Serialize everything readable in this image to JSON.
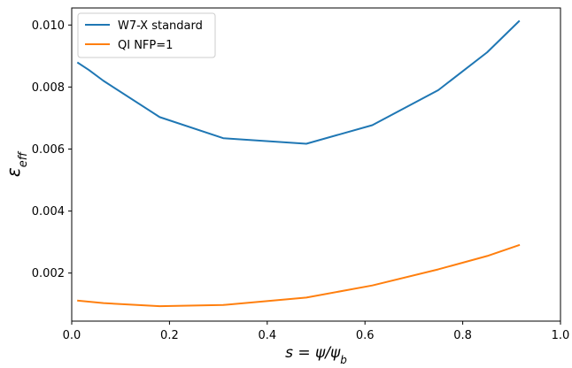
{
  "chart_data": {
    "type": "line",
    "title": "",
    "xlabel": "s = ψ/ψ_b",
    "ylabel": "ε_eff",
    "xlim": [
      0.0,
      1.0
    ],
    "ylim": [
      0.00045,
      0.01055
    ],
    "xticks": [
      0.0,
      0.2,
      0.4,
      0.6,
      0.8,
      1.0
    ],
    "xtick_labels": [
      "0.0",
      "0.2",
      "0.4",
      "0.6",
      "0.8",
      "1.0"
    ],
    "yticks": [
      0.002,
      0.004,
      0.006,
      0.008,
      0.01
    ],
    "ytick_labels": [
      "0.002",
      "0.004",
      "0.006",
      "0.008",
      "0.010"
    ],
    "grid": false,
    "legend_position": "upper-left",
    "series": [
      {
        "name": "W7-X standard",
        "color": "#1f77b4",
        "x": [
          0.013,
          0.035,
          0.065,
          0.18,
          0.31,
          0.48,
          0.615,
          0.75,
          0.85,
          0.915
        ],
        "y": [
          0.00878,
          0.00855,
          0.0082,
          0.00703,
          0.00635,
          0.00617,
          0.00677,
          0.0079,
          0.00912,
          0.01012
        ]
      },
      {
        "name": "QI NFP=1",
        "color": "#ff7f0e",
        "x": [
          0.013,
          0.065,
          0.18,
          0.31,
          0.48,
          0.615,
          0.75,
          0.85,
          0.915
        ],
        "y": [
          0.00111,
          0.00103,
          0.00093,
          0.00097,
          0.00121,
          0.0016,
          0.00212,
          0.00255,
          0.0029
        ]
      }
    ]
  }
}
